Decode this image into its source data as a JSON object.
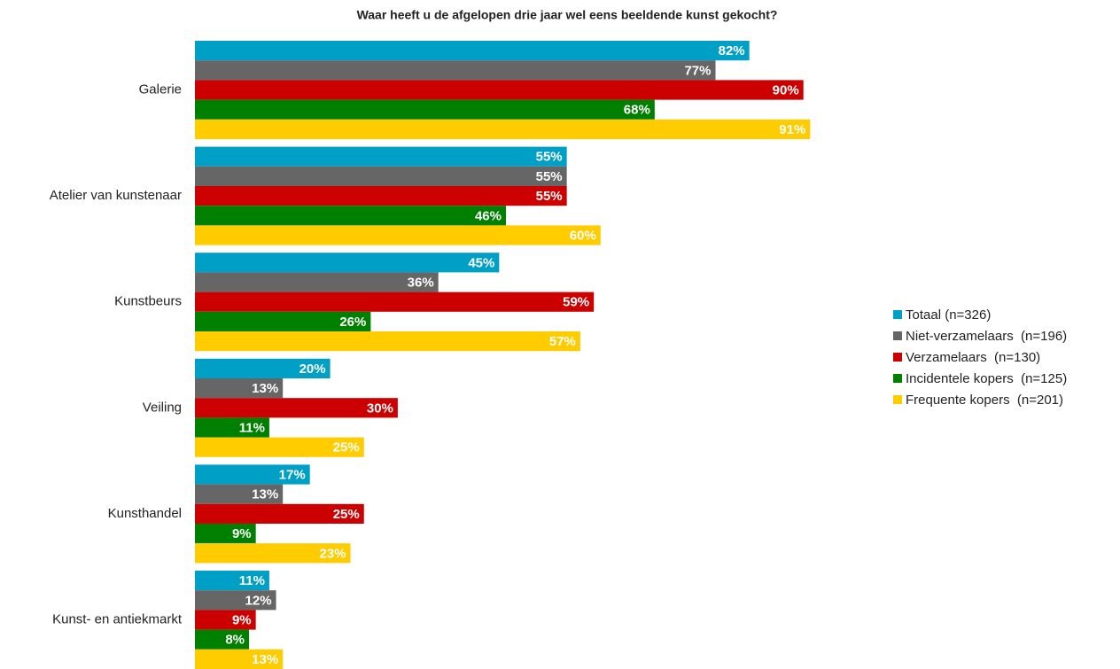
{
  "chart_data": {
    "type": "bar",
    "orientation": "horizontal",
    "title": "Waar heeft u de afgelopen drie jaar wel eens beeldende kunst gekocht?",
    "categories": [
      "Galerie",
      "Atelier van kunstenaar",
      "Kunstbeurs",
      "Veiling",
      "Kunsthandel",
      "Kunst- en antiekmarkt"
    ],
    "xlim": [
      0,
      100
    ],
    "legend": "right",
    "series": [
      {
        "name": "Totaal (n=326)",
        "color": "#00a0c6",
        "values": [
          82,
          55,
          45,
          20,
          17,
          11
        ],
        "value_labels": [
          "82%",
          "55%",
          "45%",
          "20%",
          "17%",
          "11%"
        ]
      },
      {
        "name": "Niet-verzamelaars  (n=196)",
        "color": "#666666",
        "values": [
          77,
          55,
          36,
          13,
          13,
          12
        ],
        "value_labels": [
          "77%",
          "55%",
          "36%",
          "13%",
          "13%",
          "12%"
        ]
      },
      {
        "name": "Verzamelaars  (n=130)",
        "color": "#cc0000",
        "values": [
          90,
          55,
          59,
          30,
          25,
          9
        ],
        "value_labels": [
          "90%",
          "55%",
          "59%",
          "30%",
          "25%",
          "9%"
        ]
      },
      {
        "name": "Incidentele kopers  (n=125)",
        "color": "#008000",
        "values": [
          68,
          46,
          26,
          11,
          9,
          8
        ],
        "value_labels": [
          "68%",
          "46%",
          "26%",
          "11%",
          "9%",
          "8%"
        ]
      },
      {
        "name": "Frequente kopers  (n=201)",
        "color": "#ffcc00",
        "values": [
          91,
          60,
          57,
          25,
          23,
          13
        ],
        "value_labels": [
          "91%",
          "60%",
          "57%",
          "25%",
          "23%",
          "13%"
        ]
      }
    ]
  }
}
